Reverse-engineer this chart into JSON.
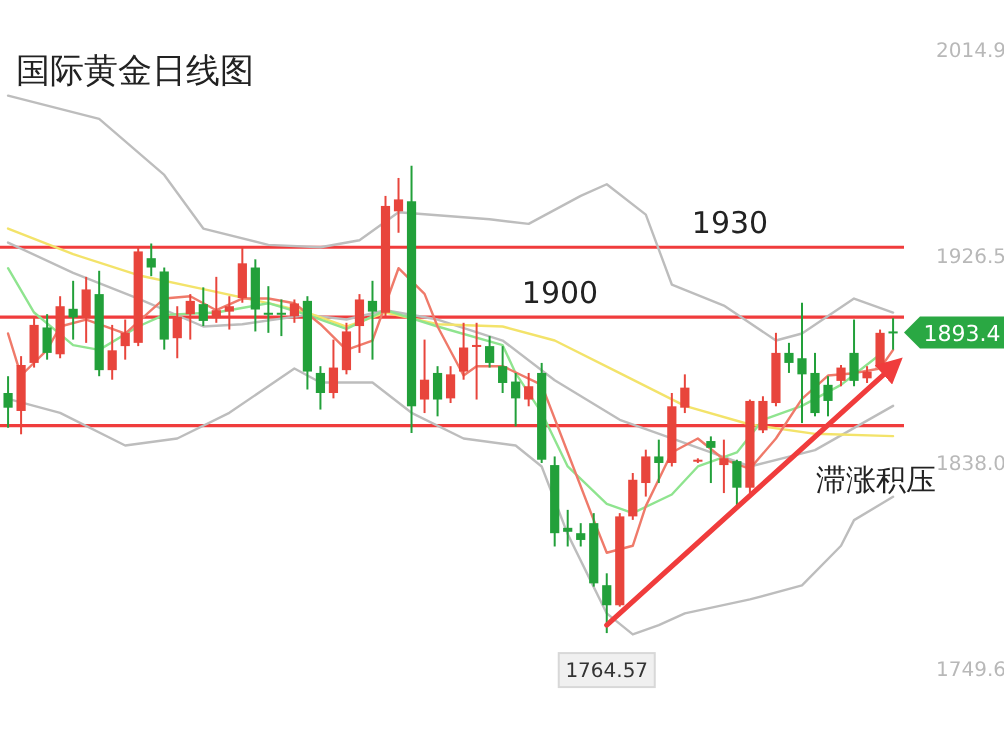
{
  "chart_data": {
    "type": "candlestick",
    "title": "国际黄金日线图",
    "categories": [
      null,
      null,
      null,
      null,
      null,
      null,
      null,
      null,
      null,
      null,
      null,
      null,
      null,
      null,
      null,
      null,
      null,
      null,
      null,
      null,
      null,
      null,
      null,
      null,
      null,
      null,
      null,
      null,
      null,
      null,
      null,
      null,
      null,
      null,
      null,
      null,
      null,
      null,
      null,
      null,
      null,
      null,
      null,
      null,
      null,
      null,
      null,
      null,
      null,
      null,
      null,
      null,
      null,
      null,
      null,
      null,
      null,
      null,
      null,
      null,
      null,
      null,
      null,
      null,
      null,
      null,
      null,
      null,
      null
    ],
    "ohlc": [
      [
        1867.5,
        1874.7,
        1852.6,
        1861.2
      ],
      [
        1859.8,
        1883.3,
        1849.8,
        1879.5
      ],
      [
        1880.4,
        1900.4,
        1878.4,
        1896.7
      ],
      [
        1895.6,
        1901.3,
        1881.8,
        1884.7
      ],
      [
        1884.1,
        1909.0,
        1882.4,
        1904.7
      ],
      [
        1903.6,
        1915.6,
        1890.4,
        1899.9
      ],
      [
        1899.6,
        1917.3,
        1889.0,
        1911.9
      ],
      [
        1909.9,
        1919.9,
        1874.7,
        1877.3
      ],
      [
        1877.3,
        1896.7,
        1873.2,
        1885.8
      ],
      [
        1887.6,
        1899.0,
        1881.8,
        1893.3
      ],
      [
        1889.0,
        1930.5,
        1887.6,
        1928.2
      ],
      [
        1925.3,
        1931.6,
        1917.6,
        1921.3
      ],
      [
        1919.6,
        1921.3,
        1886.1,
        1890.4
      ],
      [
        1891.0,
        1904.7,
        1882.4,
        1900.2
      ],
      [
        1901.3,
        1909.9,
        1890.4,
        1907.0
      ],
      [
        1905.6,
        1912.8,
        1896.2,
        1898.4
      ],
      [
        1899.6,
        1917.3,
        1897.6,
        1903.0
      ],
      [
        1902.4,
        1909.0,
        1894.7,
        1904.7
      ],
      [
        1908.2,
        1929.9,
        1906.2,
        1923.1
      ],
      [
        1921.3,
        1924.8,
        1893.9,
        1903.3
      ],
      [
        1901.9,
        1913.3,
        1893.3,
        1901.3
      ],
      [
        1901.9,
        1907.6,
        1891.9,
        1901.3
      ],
      [
        1900.4,
        1907.6,
        1897.6,
        1905.9
      ],
      [
        1907.0,
        1909.0,
        1869.0,
        1876.7
      ],
      [
        1876.1,
        1879.0,
        1860.4,
        1867.5
      ],
      [
        1867.5,
        1890.4,
        1865.2,
        1878.4
      ],
      [
        1877.3,
        1897.6,
        1875.5,
        1893.9
      ],
      [
        1896.2,
        1909.9,
        1884.7,
        1907.6
      ],
      [
        1907.0,
        1915.6,
        1881.8,
        1902.4
      ],
      [
        1901.9,
        1952.0,
        1900.4,
        1947.7
      ],
      [
        1945.4,
        1959.7,
        1936.2,
        1950.5
      ],
      [
        1949.7,
        1964.9,
        1850.3,
        1861.8
      ],
      [
        1864.7,
        1890.4,
        1858.9,
        1873.2
      ],
      [
        1876.1,
        1879.0,
        1857.5,
        1864.7
      ],
      [
        1865.2,
        1879.0,
        1863.2,
        1875.5
      ],
      [
        1876.7,
        1897.6,
        1873.2,
        1887.0
      ],
      [
        1887.6,
        1897.6,
        1864.7,
        1888.1
      ],
      [
        1887.6,
        1891.9,
        1878.4,
        1880.4
      ],
      [
        1879.0,
        1887.6,
        1867.5,
        1871.8
      ],
      [
        1872.4,
        1876.1,
        1853.2,
        1865.2
      ],
      [
        1864.7,
        1876.1,
        1861.8,
        1870.4
      ],
      [
        1876.1,
        1880.4,
        1837.5,
        1838.9
      ],
      [
        1836.6,
        1840.3,
        1801.7,
        1807.4
      ],
      [
        1809.7,
        1817.4,
        1801.7,
        1808.0
      ],
      [
        1807.4,
        1811.7,
        1801.7,
        1804.5
      ],
      [
        1811.7,
        1816.0,
        1784.5,
        1785.9
      ],
      [
        1785.1,
        1790.2,
        1764.57,
        1776.5
      ],
      [
        1776.5,
        1816.0,
        1775.9,
        1814.6
      ],
      [
        1814.6,
        1833.2,
        1813.1,
        1830.3
      ],
      [
        1828.9,
        1843.2,
        1823.1,
        1840.3
      ],
      [
        1840.3,
        1847.5,
        1828.9,
        1837.5
      ],
      [
        1837.5,
        1867.5,
        1836.0,
        1861.8
      ],
      [
        1861.2,
        1875.5,
        1858.9,
        1869.8
      ],
      [
        1838.3,
        1839.5,
        1837.5,
        1838.9
      ],
      [
        1846.9,
        1848.9,
        1828.9,
        1844.0
      ],
      [
        1836.6,
        1847.5,
        1824.6,
        1839.5
      ],
      [
        1838.3,
        1838.9,
        1818.8,
        1826.9
      ],
      [
        1826.9,
        1864.7,
        1824.6,
        1864.1
      ],
      [
        1851.5,
        1866.1,
        1850.3,
        1864.1
      ],
      [
        1863.2,
        1893.3,
        1861.8,
        1884.7
      ],
      [
        1884.7,
        1889.0,
        1876.1,
        1880.4
      ],
      [
        1882.4,
        1906.2,
        1854.6,
        1875.5
      ],
      [
        1876.1,
        1884.7,
        1857.5,
        1858.9
      ],
      [
        1871.0,
        1874.7,
        1857.5,
        1864.1
      ],
      [
        1872.7,
        1879.5,
        1870.4,
        1878.4
      ],
      [
        1884.7,
        1899.0,
        1870.4,
        1872.7
      ],
      [
        1873.8,
        1879.0,
        1871.8,
        1876.7
      ],
      [
        1878.4,
        1894.7,
        1877.6,
        1893.3
      ],
      [
        1893.9,
        1899.6,
        1886.1,
        1893.4
      ]
    ],
    "colors": [
      "#22a03a",
      "#e8453c",
      "#e8453c",
      "#22a03a",
      "#e8453c",
      "#22a03a",
      "#e8453c",
      "#22a03a",
      "#e8453c",
      "#e8453c",
      "#e8453c",
      "#22a03a",
      "#22a03a",
      "#e8453c",
      "#e8453c",
      "#22a03a",
      "#e8453c",
      "#e8453c",
      "#e8453c",
      "#22a03a",
      "#22a03a",
      "#22a03a",
      "#e8453c",
      "#22a03a",
      "#22a03a",
      "#e8453c",
      "#e8453c",
      "#e8453c",
      "#22a03a",
      "#e8453c",
      "#e8453c",
      "#22a03a",
      "#e8453c",
      "#22a03a",
      "#e8453c",
      "#e8453c",
      "#e8453c",
      "#22a03a",
      "#22a03a",
      "#22a03a",
      "#e8453c",
      "#22a03a",
      "#22a03a",
      "#22a03a",
      "#22a03a",
      "#22a03a",
      "#22a03a",
      "#e8453c",
      "#e8453c",
      "#e8453c",
      "#22a03a",
      "#e8453c",
      "#e8453c",
      "#e8453c",
      "#22a03a",
      "#e8453c",
      "#22a03a",
      "#e8453c",
      "#e8453c",
      "#e8453c",
      "#22a03a",
      "#22a03a",
      "#22a03a",
      "#22a03a",
      "#e8453c",
      "#22a03a",
      "#e8453c",
      "#e8453c",
      "#22a03a"
    ],
    "series": [
      {
        "type": "line",
        "color": "#bdbdbd",
        "values": [
          1995,
          null,
          null,
          null,
          null,
          null,
          null,
          1985,
          null,
          null,
          null,
          null,
          1961,
          null,
          null,
          1938,
          null,
          null,
          null,
          null,
          1931,
          null,
          null,
          null,
          1930,
          null,
          null,
          1933,
          null,
          null,
          1945,
          null,
          null,
          null,
          null,
          null,
          null,
          1942,
          null,
          null,
          1940,
          null,
          null,
          null,
          1952,
          null,
          1957,
          null,
          null,
          1944,
          null,
          1914,
          null,
          null,
          null,
          1905,
          null,
          null,
          null,
          1890,
          null,
          1893,
          null,
          null,
          null,
          1908,
          null,
          null,
          1902
        ]
      },
      {
        "type": "line",
        "color": "#bdbdbd",
        "values": [
          1932,
          null,
          null,
          null,
          null,
          1919,
          null,
          null,
          null,
          null,
          1908,
          null,
          null,
          null,
          null,
          1896,
          null,
          null,
          1897,
          null,
          null,
          null,
          null,
          1901,
          null,
          null,
          1899,
          null,
          null,
          1903,
          null,
          null,
          null,
          1899,
          null,
          null,
          null,
          null,
          1890,
          null,
          null,
          null,
          1873,
          null,
          null,
          null,
          null,
          1856,
          null,
          null,
          null,
          1848,
          null,
          null,
          null,
          null,
          null,
          1836,
          null,
          null,
          null,
          null,
          1843,
          null,
          null,
          null,
          null,
          null,
          1862
        ]
      },
      {
        "type": "line",
        "color": "#bdbdbd",
        "values": [
          1865,
          null,
          null,
          null,
          1859,
          null,
          null,
          null,
          null,
          1845,
          null,
          null,
          null,
          1848,
          null,
          null,
          null,
          1859,
          null,
          null,
          null,
          null,
          1878,
          null,
          1872,
          null,
          null,
          null,
          1872,
          null,
          null,
          1859,
          null,
          null,
          null,
          1848,
          null,
          null,
          null,
          1845,
          null,
          1836,
          null,
          1807,
          null,
          null,
          1773,
          null,
          1764,
          null,
          1768,
          null,
          1773,
          null,
          null,
          null,
          null,
          1779,
          null,
          null,
          null,
          1785,
          null,
          null,
          1802,
          1813,
          null,
          null,
          1823
        ]
      },
      {
        "type": "line",
        "color": "#f3e36a",
        "values": [
          1938,
          null,
          null,
          null,
          null,
          1927,
          null,
          null,
          null,
          null,
          1918,
          null,
          null,
          null,
          null,
          1912,
          null,
          null,
          null,
          null,
          1906,
          null,
          null,
          1902,
          null,
          null,
          1896,
          null,
          null,
          1902,
          null,
          null,
          null,
          1897,
          null,
          null,
          null,
          null,
          1896,
          null,
          null,
          null,
          1890,
          null,
          null,
          null,
          null,
          1876,
          null,
          null,
          null,
          null,
          1862,
          null,
          null,
          null,
          null,
          1854,
          null,
          null,
          null,
          null,
          1850,
          null,
          null,
          null,
          null,
          null,
          1849
        ]
      },
      {
        "type": "line",
        "color": "#8fe48f",
        "values": [
          1921,
          null,
          1902,
          null,
          null,
          1888,
          null,
          1886,
          null,
          null,
          1896,
          null,
          1901,
          null,
          null,
          null,
          1902,
          null,
          null,
          null,
          1906,
          null,
          null,
          1901,
          null,
          null,
          1895,
          null,
          null,
          1903,
          null,
          null,
          null,
          1896,
          null,
          null,
          null,
          null,
          1888,
          1876,
          null,
          1859,
          null,
          1836,
          null,
          null,
          1820,
          null,
          1816,
          null,
          null,
          1824,
          null,
          1836,
          null,
          null,
          1842,
          null,
          1856,
          null,
          null,
          1862,
          null,
          null,
          1871,
          null,
          null,
          1884,
          null
        ]
      },
      {
        "type": "line",
        "color": "#ef7a6a",
        "values": [
          1893,
          1875,
          null,
          1886,
          1896,
          null,
          1899,
          null,
          1895,
          1893,
          null,
          1903,
          1908,
          null,
          1909,
          null,
          1903,
          null,
          1908,
          null,
          1908,
          null,
          1906,
          null,
          1897,
          null,
          1886,
          null,
          1890,
          null,
          1921,
          null,
          1910,
          1896,
          null,
          1875,
          1879,
          null,
          1879,
          null,
          null,
          1871,
          null,
          1842,
          null,
          1813,
          1799,
          null,
          1802,
          1819,
          null,
          1842,
          null,
          1848,
          null,
          1839,
          null,
          1835,
          null,
          1848,
          null,
          1865,
          null,
          1875,
          null,
          1876,
          null,
          1878,
          1886
        ]
      },
      {
        "type": "line",
        "color": "#f03c3c",
        "values": [
          null,
          null,
          null,
          null,
          null,
          null,
          null,
          null,
          null,
          null,
          null,
          null,
          null,
          null,
          null,
          null,
          null,
          null,
          null,
          null,
          null,
          null,
          null,
          null,
          null,
          null,
          null,
          null,
          null,
          null,
          null,
          null,
          null,
          null,
          null,
          null,
          null,
          null,
          null,
          null,
          null,
          null,
          null,
          null,
          null,
          null,
          1768,
          null,
          null,
          null,
          null,
          null,
          null,
          null,
          null,
          null,
          null,
          null,
          null,
          null,
          null,
          null,
          null,
          null,
          null,
          null,
          null,
          null,
          1879
        ]
      }
    ],
    "ylim": [
      1749.6,
      2014.9
    ],
    "yticks": [
      2014.9,
      1926.5,
      {
        "value": 1838.0,
        "label": "1838.0"
      },
      1749.6
    ],
    "tick_labels": "y",
    "ref_lines": [
      {
        "axis": "y",
        "value": 1930,
        "label": "1930",
        "color": "#f03c3c"
      },
      {
        "axis": "y",
        "value": 1900,
        "label": "1900",
        "color": "#f03c3c"
      },
      {
        "axis": "y",
        "value": 1853.5,
        "color": "#f03c3c"
      }
    ],
    "annotations": [
      {
        "text": "1764.57",
        "y": 1764.57
      },
      "1893.4",
      "滞涨积压"
    ]
  }
}
